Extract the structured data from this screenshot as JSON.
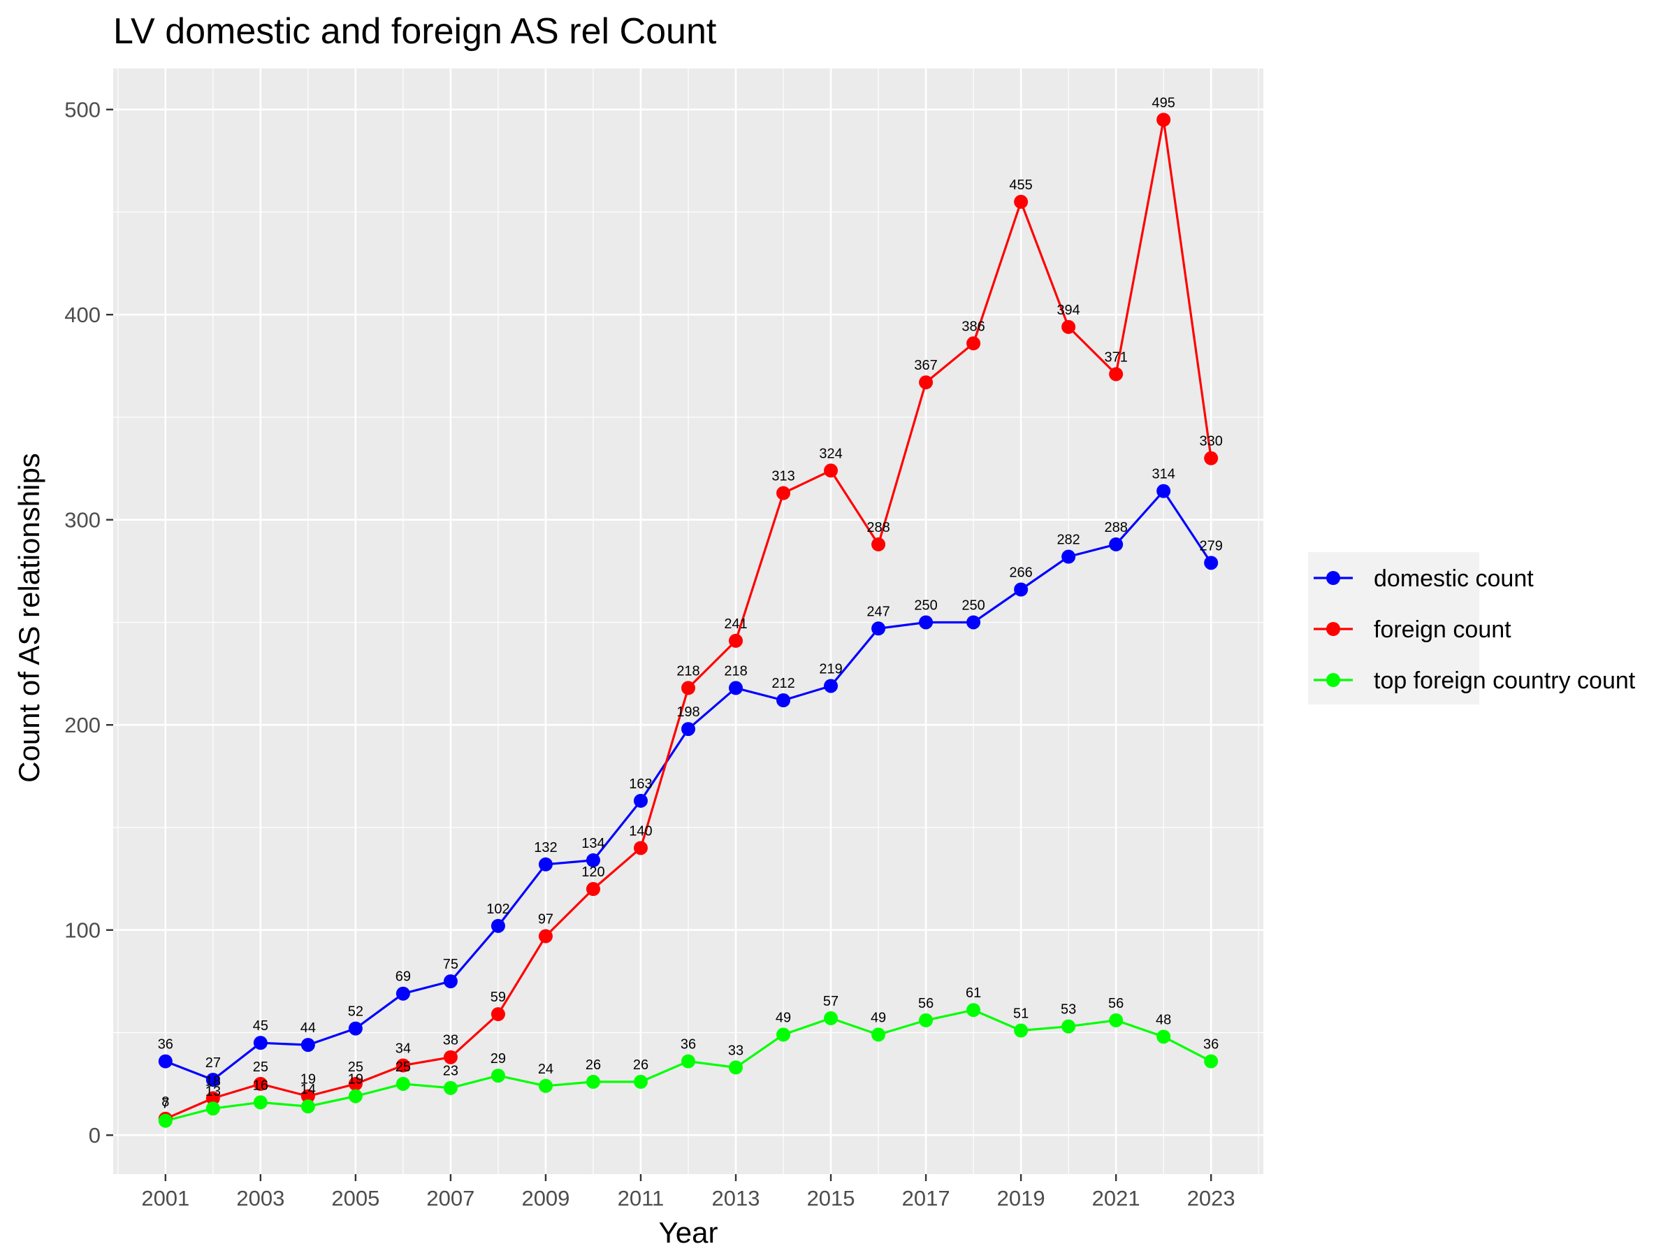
{
  "chart_data": {
    "type": "line",
    "title": "LV domestic and foreign AS rel Count",
    "xlabel": "Year",
    "ylabel": "Count of AS relationships",
    "x": [
      2001,
      2002,
      2003,
      2004,
      2005,
      2006,
      2007,
      2008,
      2009,
      2010,
      2011,
      2012,
      2013,
      2014,
      2015,
      2016,
      2017,
      2018,
      2019,
      2020,
      2021,
      2022,
      2023
    ],
    "x_ticks": [
      "2001",
      "2003",
      "2005",
      "2007",
      "2009",
      "2011",
      "2013",
      "2015",
      "2017",
      "2019",
      "2021",
      "2023"
    ],
    "y_ticks": [
      "0",
      "100",
      "200",
      "300",
      "400",
      "500"
    ],
    "xlim": [
      1999.9,
      2024.1
    ],
    "ylim": [
      -19,
      520
    ],
    "grid": true,
    "legend_position": "right",
    "series": [
      {
        "name": "domestic count",
        "color": "#0000ff",
        "values": [
          36,
          27,
          45,
          44,
          52,
          69,
          75,
          102,
          132,
          134,
          163,
          198,
          218,
          212,
          219,
          247,
          250,
          250,
          266,
          282,
          288,
          314,
          279
        ]
      },
      {
        "name": "foreign count",
        "color": "#ff0000",
        "values": [
          8,
          18,
          25,
          19,
          25,
          34,
          38,
          59,
          97,
          120,
          140,
          218,
          241,
          313,
          324,
          288,
          367,
          386,
          455,
          394,
          371,
          495,
          330
        ]
      },
      {
        "name": "top foreign country count",
        "color": "#00ff00",
        "values": [
          7,
          13,
          16,
          14,
          19,
          25,
          23,
          29,
          24,
          26,
          26,
          36,
          33,
          49,
          57,
          49,
          56,
          61,
          51,
          53,
          56,
          48,
          36
        ]
      }
    ]
  }
}
